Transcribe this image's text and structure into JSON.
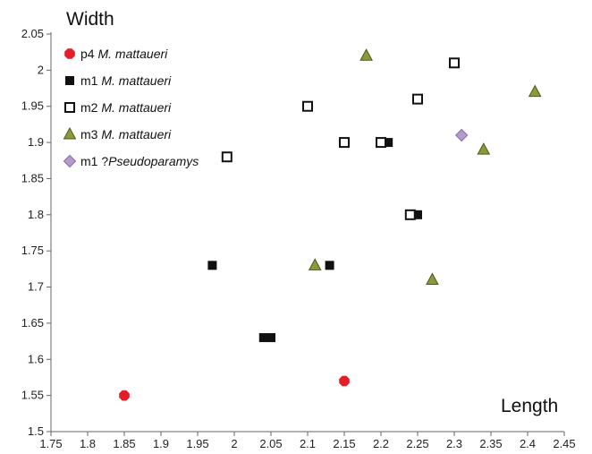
{
  "chart_data": {
    "type": "scatter",
    "title": "",
    "xlabel": "Length",
    "ylabel": "Width",
    "xlim": [
      1.75,
      2.45
    ],
    "ylim": [
      1.5,
      2.05
    ],
    "xticks": [
      "1.75",
      "1.8",
      "1.85",
      "1.9",
      "1.95",
      "2",
      "2.05",
      "2.1",
      "2.15",
      "2.2",
      "2.25",
      "2.3",
      "2.35",
      "2.4",
      "2.45"
    ],
    "yticks": [
      "1.5",
      "1.55",
      "1.6",
      "1.65",
      "1.7",
      "1.75",
      "1.8",
      "1.85",
      "1.9",
      "1.95",
      "2",
      "2.05"
    ],
    "grid": false,
    "legend_position": "top-left",
    "series": [
      {
        "name": "p4 M. mattaueri",
        "label_prefix": "p4 ",
        "label_italic": "M. mattaueri",
        "marker": "octagon-filled",
        "color": "#e41e26",
        "points": [
          [
            1.85,
            1.55
          ],
          [
            2.15,
            1.57
          ]
        ]
      },
      {
        "name": "m1 M. mattaueri",
        "label_prefix": "m1 ",
        "label_italic": "M. mattaueri",
        "marker": "square-filled",
        "color": "#111111",
        "points": [
          [
            1.97,
            1.73
          ],
          [
            2.04,
            1.63
          ],
          [
            2.05,
            1.63
          ],
          [
            2.13,
            1.73
          ],
          [
            2.21,
            1.9
          ],
          [
            2.25,
            1.8
          ]
        ]
      },
      {
        "name": "m2 M. mattaueri",
        "label_prefix": "m2 ",
        "label_italic": "M. mattaueri",
        "marker": "square-open",
        "color": "#111111",
        "points": [
          [
            1.99,
            1.88
          ],
          [
            2.1,
            1.95
          ],
          [
            2.15,
            1.9
          ],
          [
            2.2,
            1.9
          ],
          [
            2.24,
            1.8
          ],
          [
            2.25,
            1.96
          ],
          [
            2.3,
            2.01
          ]
        ]
      },
      {
        "name": "m3 M. mattaueri",
        "label_prefix": "m3 ",
        "label_italic": "M. mattaueri",
        "marker": "triangle-filled",
        "color": "#8a9a3a",
        "stroke": "#4a5a1a",
        "points": [
          [
            2.11,
            1.73
          ],
          [
            2.18,
            2.02
          ],
          [
            2.27,
            1.71
          ],
          [
            2.34,
            1.89
          ],
          [
            2.41,
            1.97
          ]
        ]
      },
      {
        "name": "m1 ?Pseudoparamys",
        "label_prefix": "m1 ?",
        "label_italic": "Pseudoparamys",
        "marker": "diamond-filled",
        "color": "#b49cc8",
        "stroke": "#8a6aa8",
        "points": [
          [
            2.31,
            1.91
          ]
        ]
      }
    ]
  }
}
